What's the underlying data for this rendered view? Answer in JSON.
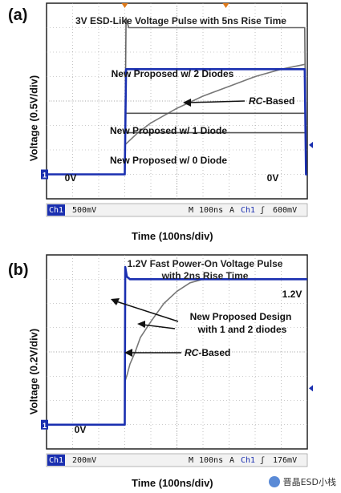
{
  "chart_data": [
    {
      "type": "line",
      "panel_label": "(a)",
      "title": "3V ESD-Like Voltage Pulse with 5ns Rise Time",
      "ylabel": "Voltage (0.5V/div)",
      "xlabel": "Time (100ns/div)",
      "x_unit": "ns",
      "y_unit": "V",
      "xlim": [
        -300,
        700
      ],
      "ylim": [
        -0.5,
        3.5
      ],
      "grid": true,
      "annotations": [
        {
          "text": "New Proposed w/ 2 Diodes"
        },
        {
          "text": "RC-Based",
          "italic_prefix": "RC",
          "rest": "-Based"
        },
        {
          "text": "New Proposed w/ 1 Diode"
        },
        {
          "text": "New Proposed w/ 0 Diode"
        },
        {
          "text": "0V"
        },
        {
          "text": "0V"
        }
      ],
      "status_bar": {
        "channel": "Ch1",
        "scale": "500mV",
        "marker": "M",
        "time": "100ns",
        "trigger": "A",
        "trigger_ch": "Ch1",
        "slope": "ʃ",
        "level": "600mV"
      },
      "marker_label": "1",
      "series": [
        {
          "name": "New Proposed w/ 2 Diodes",
          "color": "#1a2fb0",
          "x": [
            -300,
            0,
            5,
            15,
            30,
            690,
            695,
            700
          ],
          "y": [
            0,
            0,
            2.15,
            2.15,
            2.15,
            2.15,
            0,
            0
          ]
        },
        {
          "name": "Input pulse",
          "color": "#666666",
          "x": [
            -300,
            0,
            5,
            15,
            30,
            690,
            695,
            700
          ],
          "y": [
            0,
            0,
            3.2,
            3.0,
            3.0,
            3.0,
            0,
            0
          ]
        },
        {
          "name": "RC-Based",
          "color": "#777777",
          "x": [
            0,
            50,
            100,
            200,
            300,
            400,
            500,
            600,
            690
          ],
          "y": [
            0.6,
            0.85,
            1.05,
            1.35,
            1.6,
            1.8,
            2.0,
            2.15,
            2.25
          ]
        },
        {
          "name": "New Proposed w/ 1 Diode",
          "color": "#555555",
          "x": [
            0,
            30,
            690
          ],
          "y": [
            1.25,
            1.25,
            1.25
          ]
        },
        {
          "name": "New Proposed w/ 0 Diode",
          "color": "#555555",
          "x": [
            0,
            30,
            690
          ],
          "y": [
            0.85,
            0.85,
            0.85
          ]
        }
      ]
    },
    {
      "type": "line",
      "panel_label": "(b)",
      "title": "1.2V Fast Power-On Voltage Pulse with 2ns Rise Time",
      "ylabel": "Voltage (0.2V/div)",
      "xlabel": "Time (100ns/div)",
      "x_unit": "ns",
      "y_unit": "V",
      "xlim": [
        -300,
        700
      ],
      "ylim": [
        -0.2,
        1.4
      ],
      "grid": true,
      "annotations": [
        {
          "text": "1.2V"
        },
        {
          "text": "New Proposed Design"
        },
        {
          "text": "with 1 and 2 diodes"
        },
        {
          "text": "RC-Based",
          "italic_prefix": "RC",
          "rest": "-Based"
        },
        {
          "text": "0V"
        }
      ],
      "status_bar": {
        "channel": "Ch1",
        "scale": "200mV",
        "marker": "M",
        "time": "100ns",
        "trigger": "A",
        "trigger_ch": "Ch1",
        "slope": "ʃ",
        "level": "176mV"
      },
      "marker_label": "1",
      "series": [
        {
          "name": "New Proposed Design with 1 and 2 diodes",
          "color": "#1a2fb0",
          "x": [
            -300,
            0,
            2,
            8,
            20,
            40,
            700
          ],
          "y": [
            0,
            0,
            1.3,
            1.22,
            1.2,
            1.2,
            1.2
          ]
        },
        {
          "name": "RC-Based",
          "color": "#777777",
          "x": [
            0,
            10,
            20,
            40,
            60,
            100,
            150,
            200,
            250,
            300,
            700
          ],
          "y": [
            0.35,
            0.42,
            0.5,
            0.6,
            0.72,
            0.85,
            1.0,
            1.1,
            1.17,
            1.2,
            1.2
          ]
        }
      ]
    }
  ],
  "watermark": {
    "text": "晋晶ESD小栈"
  }
}
